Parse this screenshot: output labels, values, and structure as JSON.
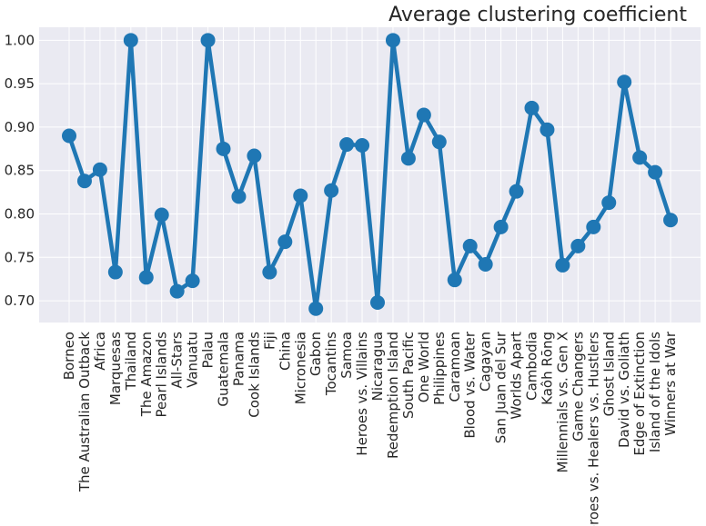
{
  "chart_data": {
    "type": "line",
    "title": "Average clustering coefficient",
    "xlabel": "",
    "ylabel": "",
    "ylim": [
      0.675,
      1.015
    ],
    "yticks": [
      0.7,
      0.75,
      0.8,
      0.85,
      0.9,
      0.95,
      1.0
    ],
    "grid": true,
    "legend": "none",
    "colors": {
      "series": "#1f77b4",
      "background": "#eaeaf2",
      "grid": "#ffffff",
      "text": "#262626"
    },
    "categories": [
      "Borneo",
      "The Australian Outback",
      "Africa",
      "Marquesas",
      "Thailand",
      "The Amazon",
      "Pearl Islands",
      "All-Stars",
      "Vanuatu",
      "Palau",
      "Guatemala",
      "Panama",
      "Cook Islands",
      "Fiji",
      "China",
      "Micronesia",
      "Gabon",
      "Tocantins",
      "Samoa",
      "Heroes vs. Villains",
      "Nicaragua",
      "Redemption Island",
      "South Pacific",
      "One World",
      "Philippines",
      "Caramoan",
      "Blood vs. Water",
      "Cagayan",
      "San Juan del Sur",
      "Worlds Apart",
      "Cambodia",
      "Kaôh Rōng",
      "Millennials vs. Gen X",
      "Game Changers",
      "Heroes vs. Healers vs. Hustlers",
      "Ghost Island",
      "David vs. Goliath",
      "Edge of Extinction",
      "Island of the Idols",
      "Winners at War"
    ],
    "series": [
      {
        "name": "",
        "values": [
          0.89,
          0.838,
          0.851,
          0.733,
          1.0,
          0.727,
          0.799,
          0.711,
          0.723,
          1.0,
          0.875,
          0.82,
          0.867,
          0.733,
          0.768,
          0.821,
          0.691,
          0.827,
          0.88,
          0.879,
          0.698,
          1.0,
          0.864,
          0.914,
          0.883,
          0.724,
          0.763,
          0.742,
          0.785,
          0.826,
          0.922,
          0.897,
          0.741,
          0.763,
          0.785,
          0.813,
          0.952,
          0.865,
          0.848,
          0.793
        ]
      }
    ]
  }
}
